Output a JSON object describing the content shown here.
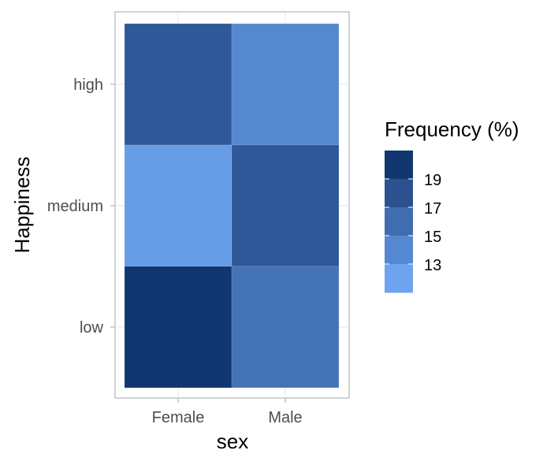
{
  "chart_data": {
    "type": "heatmap",
    "x_categories": [
      "Female",
      "Male"
    ],
    "y_categories": [
      "low",
      "medium",
      "high"
    ],
    "cells": [
      {
        "x": "Female",
        "y": "high",
        "value": 17.5
      },
      {
        "x": "Male",
        "y": "high",
        "value": 14.0
      },
      {
        "x": "Female",
        "y": "medium",
        "value": 12.5
      },
      {
        "x": "Male",
        "y": "medium",
        "value": 17.5
      },
      {
        "x": "Female",
        "y": "low",
        "value": 20.0
      },
      {
        "x": "Male",
        "y": "low",
        "value": 15.5
      }
    ],
    "xlabel": "sex",
    "ylabel": "Happiness",
    "legend": {
      "title": "Frequency (%)",
      "placement": "right",
      "labels": [
        "19",
        "17",
        "15",
        "13"
      ],
      "colors": [
        "#12366f",
        "#2b528f",
        "#406cb0",
        "#5688d1",
        "#6da3ef"
      ]
    },
    "grid": true
  }
}
